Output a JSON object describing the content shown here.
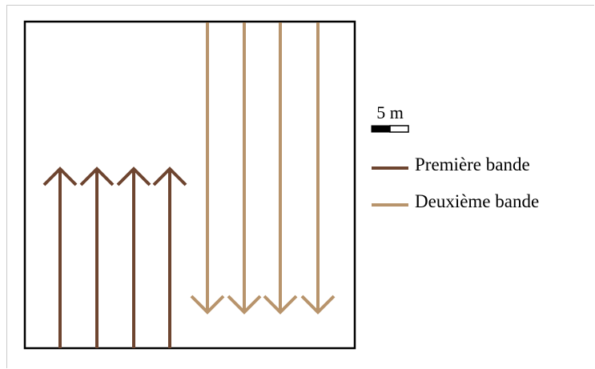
{
  "scale_bar": {
    "label": "5 m"
  },
  "legend": {
    "items": [
      {
        "label": "Première bande",
        "color": "#6e4530"
      },
      {
        "label": "Deuxième bande",
        "color": "#b8946c"
      }
    ]
  },
  "bands": {
    "first": {
      "color": "#6e4530",
      "direction": "up",
      "arrow_count": 4
    },
    "second": {
      "color": "#b8946c",
      "direction": "down",
      "arrow_count": 4
    }
  }
}
